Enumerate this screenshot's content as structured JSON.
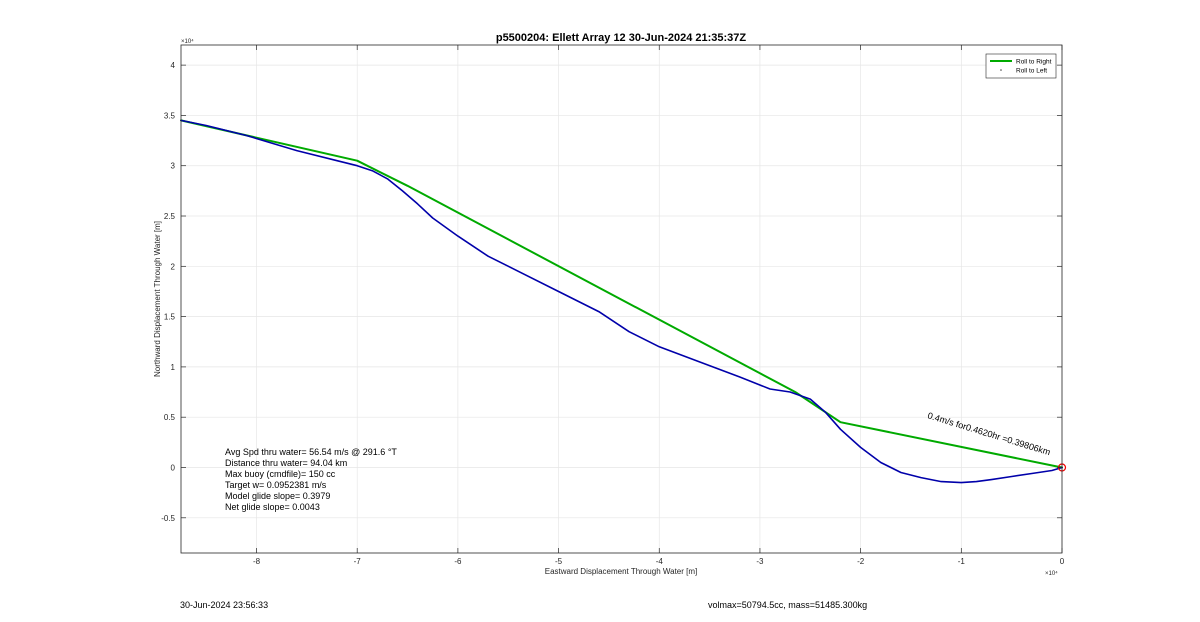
{
  "chart_data": {
    "type": "line",
    "title": "p5500204: Ellett Array 12 30-Jun-2024 21:35:37Z",
    "xlabel": "Eastward Displacement Through Water [m]",
    "ylabel": "Northward Displacement Through Water [m]",
    "x_exponent": "×10⁴",
    "y_exponent": "×10⁴",
    "xlim": [
      -8.75,
      0
    ],
    "ylim": [
      -0.85,
      4.2
    ],
    "xticks": [
      -8,
      -7,
      -6,
      -5,
      -4,
      -3,
      -2,
      -1,
      0
    ],
    "xtick_labels": [
      "-8",
      "-7",
      "-6",
      "-5",
      "-4",
      "-3",
      "-2",
      "-1",
      "0"
    ],
    "yticks": [
      -0.5,
      0,
      0.5,
      1,
      1.5,
      2,
      2.5,
      3,
      3.5,
      4
    ],
    "ytick_labels": [
      "-0.5",
      "0",
      "0.5",
      "1",
      "1.5",
      "2",
      "2.5",
      "3",
      "3.5",
      "4"
    ],
    "grid": true,
    "legend_position": "top-right",
    "legend": [
      {
        "name": "Roll to Right",
        "color": "#00aa00",
        "style": "line"
      },
      {
        "name": "Roll to Left",
        "color": "#444444",
        "style": "marker"
      }
    ],
    "series": [
      {
        "name": "Roll to Right",
        "color": "#00aa00",
        "x": [
          -8.75,
          -7.0,
          -6.5,
          -2.65,
          -2.2,
          0
        ],
        "y": [
          3.45,
          3.05,
          2.8,
          0.75,
          0.45,
          0
        ]
      },
      {
        "color": "#0000aa",
        "x": [
          -8.75,
          -8.5,
          -8.1,
          -7.6,
          -7.2,
          -7.0,
          -6.85,
          -6.7,
          -6.55,
          -6.4,
          -6.25,
          -6.0,
          -5.7,
          -5.4,
          -5.0,
          -4.6,
          -4.3,
          -4.0,
          -3.6,
          -3.2,
          -2.9,
          -2.7,
          -2.5,
          -2.35,
          -2.2,
          -2.0,
          -1.8,
          -1.6,
          -1.4,
          -1.2,
          -1.0,
          -0.85,
          -0.7,
          -0.5,
          -0.3,
          -0.1,
          0
        ],
        "y": [
          3.45,
          3.4,
          3.3,
          3.15,
          3.05,
          3.0,
          2.95,
          2.87,
          2.75,
          2.62,
          2.48,
          2.3,
          2.1,
          1.95,
          1.75,
          1.55,
          1.35,
          1.2,
          1.05,
          0.9,
          0.78,
          0.75,
          0.68,
          0.55,
          0.38,
          0.2,
          0.05,
          -0.05,
          -0.1,
          -0.14,
          -0.15,
          -0.14,
          -0.12,
          -0.09,
          -0.06,
          -0.03,
          0
        ]
      }
    ],
    "marker_end": {
      "x": 0,
      "y": 0,
      "color": "#ee0000"
    },
    "annotation_rotated": "0.4m/s for0.4620hr =0.39806km",
    "stats": [
      "Avg Spd thru water= 56.54 m/s @ 291.6 °T",
      "Distance thru water= 94.04 km",
      "Max buoy (cmdfile)= 150 cc",
      "Target w= 0.0952381 m/s",
      "Model glide slope= 0.3979",
      "Net glide slope= 0.0043"
    ]
  },
  "footer": {
    "timestamp": "30-Jun-2024 23:56:33",
    "volmass": "volmax=50794.5cc, mass=51485.300kg"
  }
}
